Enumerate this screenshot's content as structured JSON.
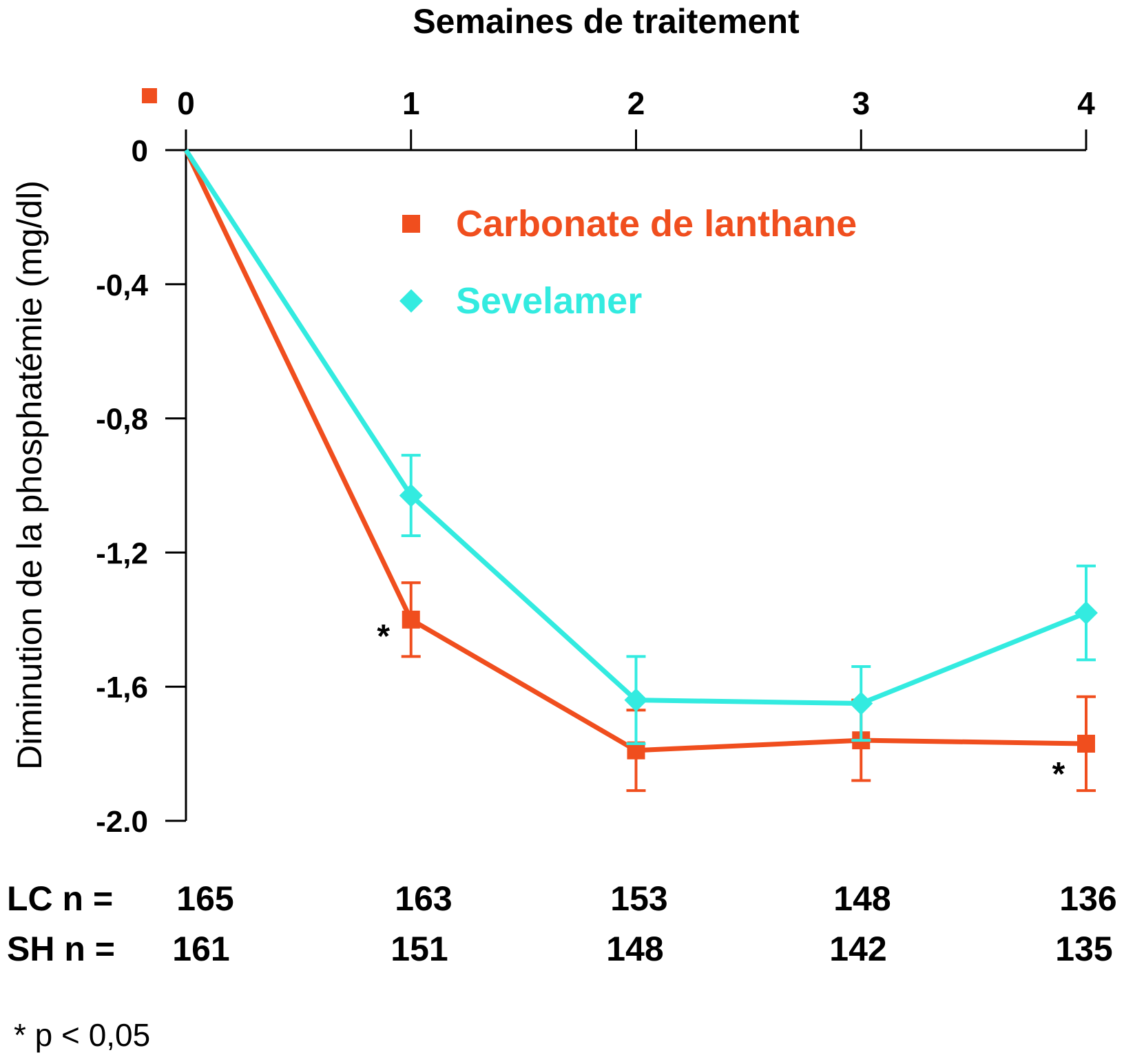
{
  "chart_data": {
    "type": "line",
    "xlabel": "Semaines de traitement",
    "ylabel": "Diminution de la phosphatémie (mg/dl)",
    "x": [
      0,
      1,
      2,
      3,
      4
    ],
    "x_tick_labels": [
      "0",
      "1",
      "2",
      "3",
      "4"
    ],
    "y_ticks": [
      0,
      -0.4,
      -0.8,
      -1.2,
      -1.6,
      -2.0
    ],
    "y_tick_labels": [
      "0",
      "-0,4",
      "-0,8",
      "-1,2",
      "-1,6",
      "-2.0"
    ],
    "ylim": [
      -2.0,
      0
    ],
    "xlim": [
      0,
      4
    ],
    "legend_position": "top-center",
    "series": [
      {
        "name": "Carbonate de lanthane",
        "color": "#f04e1e",
        "marker": "square",
        "values": [
          0,
          -1.4,
          -1.79,
          -1.76,
          -1.77
        ],
        "error": [
          0,
          0.11,
          0.12,
          0.12,
          0.14
        ]
      },
      {
        "name": "Sevelamer",
        "color": "#33ebe0",
        "marker": "diamond",
        "values": [
          0,
          -1.03,
          -1.64,
          -1.65,
          -1.38
        ],
        "error": [
          0,
          0.12,
          0.13,
          0.11,
          0.14
        ]
      }
    ],
    "annotations": [
      {
        "text": "*",
        "x": 1,
        "series": 0
      },
      {
        "text": "*",
        "x": 4,
        "series": 0
      }
    ]
  },
  "sample_sizes": {
    "rows": [
      {
        "label": "LC n =",
        "values": [
          "165",
          "163",
          "153",
          "148",
          "136"
        ]
      },
      {
        "label": "SH n =",
        "values": [
          "161",
          "151",
          "148",
          "142",
          "135"
        ]
      }
    ]
  },
  "footnote": "* p < 0,05"
}
